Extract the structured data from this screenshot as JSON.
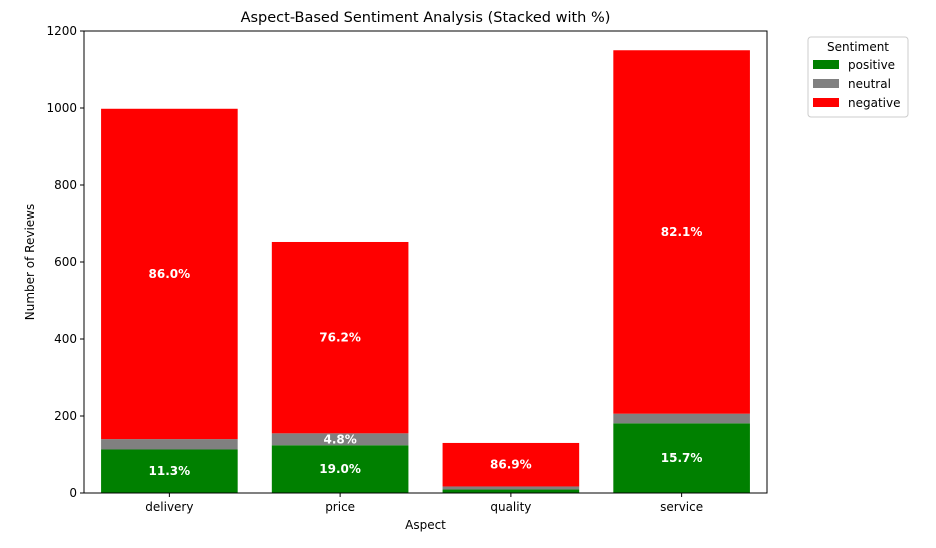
{
  "chart_data": {
    "type": "bar",
    "stacked": true,
    "title": "Aspect-Based Sentiment Analysis (Stacked with %)",
    "xlabel": "Aspect",
    "ylabel": "Number of Reviews",
    "ylim": [
      0,
      1200
    ],
    "yticks": [
      0,
      200,
      400,
      600,
      800,
      1000,
      1200
    ],
    "categories": [
      "delivery",
      "price",
      "quality",
      "service"
    ],
    "series": [
      {
        "name": "positive",
        "color": "#008000",
        "values": [
          113,
          124,
          9,
          181
        ]
      },
      {
        "name": "neutral",
        "color": "#808080",
        "values": [
          27,
          31,
          8,
          25
        ]
      },
      {
        "name": "negative",
        "color": "#ff0000",
        "values": [
          858,
          497,
          113,
          944
        ]
      }
    ],
    "segment_labels": [
      [
        "11.3%",
        "",
        "86.0%"
      ],
      [
        "19.0%",
        "4.8%",
        "76.2%"
      ],
      [
        "",
        "",
        "86.9%"
      ],
      [
        "15.7%",
        "",
        "82.1%"
      ]
    ],
    "legend": {
      "title": "Sentiment",
      "placement": "outside-top-right"
    },
    "grid": false
  }
}
